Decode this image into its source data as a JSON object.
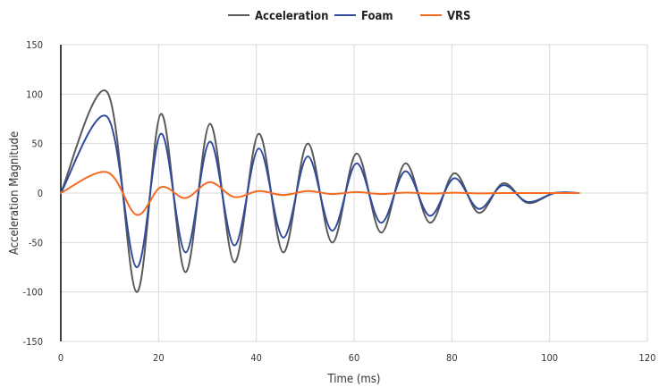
{
  "chart_data": {
    "type": "line",
    "title": "",
    "xlabel": "Time (ms)",
    "ylabel": "Acceleration Magnitude",
    "xlim": [
      0,
      120
    ],
    "ylim": [
      -150,
      150
    ],
    "xticks": [
      0,
      20,
      40,
      60,
      80,
      100,
      120
    ],
    "yticks": [
      -150,
      -100,
      -50,
      0,
      50,
      100,
      150
    ],
    "grid": true,
    "legend_position": "top-center",
    "series": [
      {
        "name": "Acceleration",
        "color": "#595959",
        "points": [
          [
            0,
            0
          ],
          [
            9.5,
            102
          ],
          [
            15.5,
            -100
          ],
          [
            20.5,
            80
          ],
          [
            25.5,
            -80
          ],
          [
            30.5,
            70
          ],
          [
            35.5,
            -70
          ],
          [
            40.5,
            60
          ],
          [
            45.5,
            -60
          ],
          [
            50.5,
            50
          ],
          [
            55.5,
            -50
          ],
          [
            60.5,
            40
          ],
          [
            65.5,
            -40
          ],
          [
            70.5,
            30
          ],
          [
            75.5,
            -30
          ],
          [
            80.5,
            20
          ],
          [
            85.5,
            -20
          ],
          [
            90.5,
            10
          ],
          [
            95.5,
            -10
          ],
          [
            101,
            0
          ],
          [
            106,
            0
          ]
        ]
      },
      {
        "name": "Foam",
        "color": "#2F4B9C",
        "points": [
          [
            0,
            0
          ],
          [
            9.5,
            77
          ],
          [
            15.5,
            -75
          ],
          [
            20.5,
            60
          ],
          [
            25.5,
            -60
          ],
          [
            30.5,
            52
          ],
          [
            35.5,
            -53
          ],
          [
            40.5,
            45
          ],
          [
            45.5,
            -45
          ],
          [
            50.5,
            37
          ],
          [
            55.5,
            -38
          ],
          [
            60.5,
            30
          ],
          [
            65.5,
            -30
          ],
          [
            70.5,
            22
          ],
          [
            75.5,
            -23
          ],
          [
            80.5,
            15
          ],
          [
            85.5,
            -16
          ],
          [
            90.5,
            8
          ],
          [
            95.5,
            -9
          ],
          [
            101,
            0
          ],
          [
            106,
            0
          ]
        ]
      },
      {
        "name": "VRS",
        "color": "#F26B21",
        "points": [
          [
            0,
            0
          ],
          [
            9.5,
            21
          ],
          [
            15.5,
            -22
          ],
          [
            20.5,
            6
          ],
          [
            25.5,
            -5
          ],
          [
            30.5,
            11
          ],
          [
            35.5,
            -4
          ],
          [
            40.5,
            2
          ],
          [
            45.5,
            -2
          ],
          [
            50.5,
            2
          ],
          [
            55.5,
            -1
          ],
          [
            60.5,
            1
          ],
          [
            65.5,
            -1
          ],
          [
            70.5,
            0.5
          ],
          [
            75.5,
            -0.5
          ],
          [
            80.5,
            0.3
          ],
          [
            85.5,
            -0.3
          ],
          [
            90.5,
            0
          ],
          [
            95.5,
            0
          ],
          [
            101,
            0
          ],
          [
            106,
            0
          ]
        ]
      }
    ]
  }
}
